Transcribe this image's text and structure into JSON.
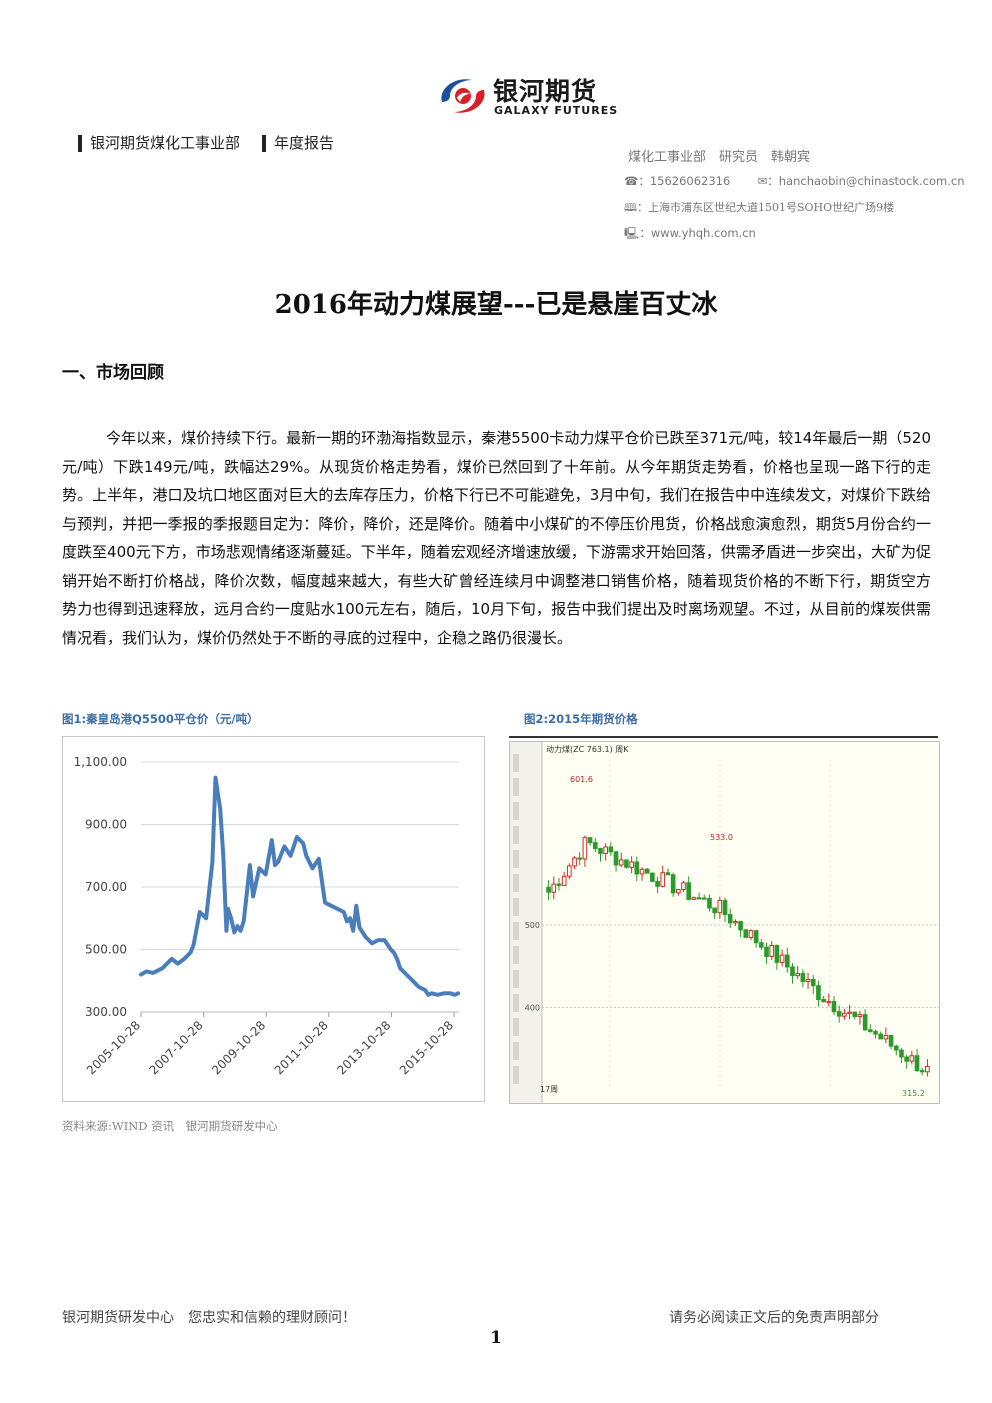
{
  "brand": {
    "name_cn": "银河期货",
    "name_en": "GALAXY FUTURES",
    "logo_colors": [
      "#d9202a",
      "#1d4f9c"
    ]
  },
  "header": {
    "tag_department": "银河期货煤化工事业部",
    "tag_report": "年度报告",
    "author_line": "煤化工事业部　研究员　韩朝宾",
    "phone_icon": "☎：",
    "phone": "15626062316",
    "mail_icon": "✉：",
    "email": "hanchaobin@chinastock.com.cn",
    "address_icon": "🕮：",
    "address": "上海市浦东区世纪大道1501号SOHO世纪广场9楼",
    "web_icon": "🖳：",
    "website": "www.yhqh.com.cn"
  },
  "doc_title": "2016年动力煤展望---已是悬崖百丈冰",
  "section_heading": "一、市场回顾",
  "body_paragraph": "今年以来，煤价持续下行。最新一期的环渤海指数显示，秦港5500卡动力煤平仓价已跌至371元/吨，较14年最后一期（520元/吨）下跌149元/吨，跌幅达29%。从现货价格走势看，煤价已然回到了十年前。从今年期货走势看，价格也呈现一路下行的走势。上半年，港口及坑口地区面对巨大的去库存压力，价格下行已不可能避免，3月中旬，我们在报告中中连续发文，对煤价下跌给与预判，并把一季报的季报题目定为：降价，降价，还是降价。随着中小煤矿的不停压价甩货，价格战愈演愈烈，期货5月份合约一度跌至400元下方，市场悲观情绪逐渐蔓延。下半年，随着宏观经济增速放缓，下游需求开始回落，供需矛盾进一步突出，大矿为促销开始不断打价格战，降价次数，幅度越来越大，有些大矿曾经连续月中调整港口销售价格，随着现货价格的不断下行，期货空方势力也得到迅速释放，远月合约一度贴水100元左右，随后，10月下旬，报告中我们提出及时离场观望。不过，从目前的煤炭供需情况看，我们认为，煤价仍然处于不断的寻底的过程中，企稳之路仍很漫长。",
  "figures": {
    "fig1_caption": "图1:秦皇岛港Q5500平仓价（元/吨）",
    "fig2_caption": "图2:2015年期货价格",
    "source_note": "资料来源:WIND 资讯　银河期货研发中心"
  },
  "chart_data": [
    {
      "type": "line",
      "title": "",
      "xlabel": "",
      "ylabel": "",
      "ylim": [
        300,
        1100
      ],
      "y_ticks": [
        "1,100.00",
        "900.00",
        "700.00",
        "500.00",
        "300.00"
      ],
      "x_ticks": [
        "2005-10-28",
        "2007-10-28",
        "2009-10-28",
        "2011-10-28",
        "2013-10-28",
        "2015-10-28"
      ],
      "grid": true,
      "line_color": "#4a7ebb",
      "series": [
        {
          "x": [
            2005.82,
            2006.0,
            2006.2,
            2006.5,
            2006.8,
            2007.0,
            2007.2,
            2007.4,
            2007.5,
            2007.7,
            2007.9,
            2008.1,
            2008.2,
            2008.35,
            2008.45,
            2008.55,
            2008.6,
            2008.7,
            2008.8,
            2008.9,
            2009.0,
            2009.1,
            2009.2,
            2009.3,
            2009.4,
            2009.6,
            2009.8,
            2010.0,
            2010.1,
            2010.2,
            2010.4,
            2010.6,
            2010.8,
            2011.0,
            2011.1,
            2011.3,
            2011.5,
            2011.7,
            2011.9,
            2012.1,
            2012.3,
            2012.4,
            2012.5,
            2012.6,
            2012.7,
            2012.8,
            2013.0,
            2013.2,
            2013.4,
            2013.6,
            2013.8,
            2013.9,
            2014.0,
            2014.1,
            2014.3,
            2014.5,
            2014.7,
            2014.9,
            2015.0,
            2015.1,
            2015.3,
            2015.5,
            2015.7,
            2015.85,
            2015.95
          ],
          "y": [
            420,
            430,
            425,
            440,
            470,
            455,
            470,
            490,
            515,
            620,
            600,
            780,
            1050,
            950,
            800,
            560,
            630,
            600,
            555,
            575,
            560,
            590,
            680,
            770,
            670,
            760,
            740,
            850,
            770,
            780,
            830,
            800,
            860,
            840,
            800,
            760,
            790,
            650,
            640,
            630,
            620,
            590,
            600,
            560,
            640,
            570,
            540,
            520,
            530,
            530,
            500,
            490,
            470,
            440,
            420,
            400,
            380,
            370,
            355,
            360,
            355,
            360,
            360,
            355,
            360
          ]
        }
      ]
    },
    {
      "type": "bar",
      "title": "",
      "ylim": [
        300,
        700
      ],
      "y_ticks": [
        "500",
        "400"
      ],
      "annotations": [
        "601.6",
        "533.0",
        "315.2",
        "17周"
      ],
      "header_text": "动力煤(ZC 763.1) 周K",
      "up_color": "#d22a2a",
      "down_color": "#2a9b2a"
    }
  ],
  "footer": {
    "left": "银河期货研发中心　您忠实和信赖的理财顾问！",
    "right": "请务必阅读正文后的免责声明部分",
    "page_number": "1"
  }
}
